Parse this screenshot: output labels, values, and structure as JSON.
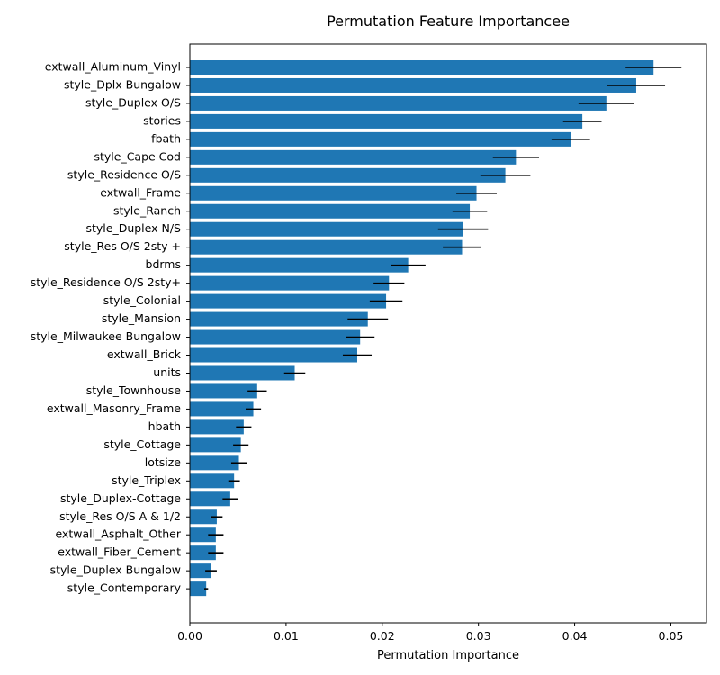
{
  "chart_data": {
    "type": "bar",
    "orientation": "horizontal",
    "title": "Permutation Feature Importancee",
    "xlabel": "Permutation Importance",
    "ylabel": "",
    "xlim": [
      0,
      0.0537
    ],
    "xticks": [
      0.0,
      0.01,
      0.02,
      0.03,
      0.04,
      0.05
    ],
    "xtick_labels": [
      "0.00",
      "0.01",
      "0.02",
      "0.03",
      "0.04",
      "0.05"
    ],
    "grid": false,
    "bar_color": "#1f77b4",
    "error_color": "#000000",
    "categories": [
      "extwall_Aluminum_Vinyl",
      "style_Dplx Bungalow",
      "style_Duplex O/S",
      "stories",
      "fbath",
      "style_Cape Cod",
      "style_Residence O/S",
      "extwall_Frame",
      "style_Ranch",
      "style_Duplex N/S",
      "style_Res O/S 2sty +",
      "bdrms",
      "style_Residence O/S 2sty+",
      "style_Colonial",
      "style_Mansion",
      "style_Milwaukee Bungalow",
      "extwall_Brick",
      "units",
      "style_Townhouse",
      "extwall_Masonry_Frame",
      "hbath",
      "style_Cottage",
      "lotsize",
      "style_Triplex",
      "style_Duplex-Cottage",
      "style_Res O/S A & 1/2",
      "extwall_Asphalt_Other",
      "extwall_Fiber_Cement",
      "style_Duplex Bungalow",
      "style_Contemporary"
    ],
    "values": [
      0.0482,
      0.0464,
      0.0433,
      0.0408,
      0.0396,
      0.0339,
      0.0328,
      0.0298,
      0.0291,
      0.0284,
      0.0283,
      0.0227,
      0.0207,
      0.0204,
      0.0185,
      0.0177,
      0.0174,
      0.0109,
      0.007,
      0.0066,
      0.0056,
      0.0053,
      0.0051,
      0.0046,
      0.0042,
      0.0028,
      0.0027,
      0.0027,
      0.0022,
      0.0017
    ],
    "errors": [
      0.0029,
      0.003,
      0.0029,
      0.002,
      0.002,
      0.0024,
      0.0026,
      0.0021,
      0.0018,
      0.0026,
      0.002,
      0.0018,
      0.0016,
      0.0017,
      0.0021,
      0.0015,
      0.0015,
      0.0011,
      0.001,
      0.0008,
      0.0008,
      0.0008,
      0.0008,
      0.0006,
      0.0008,
      0.0006,
      0.0008,
      0.0008,
      0.0006,
      0.0002
    ]
  }
}
